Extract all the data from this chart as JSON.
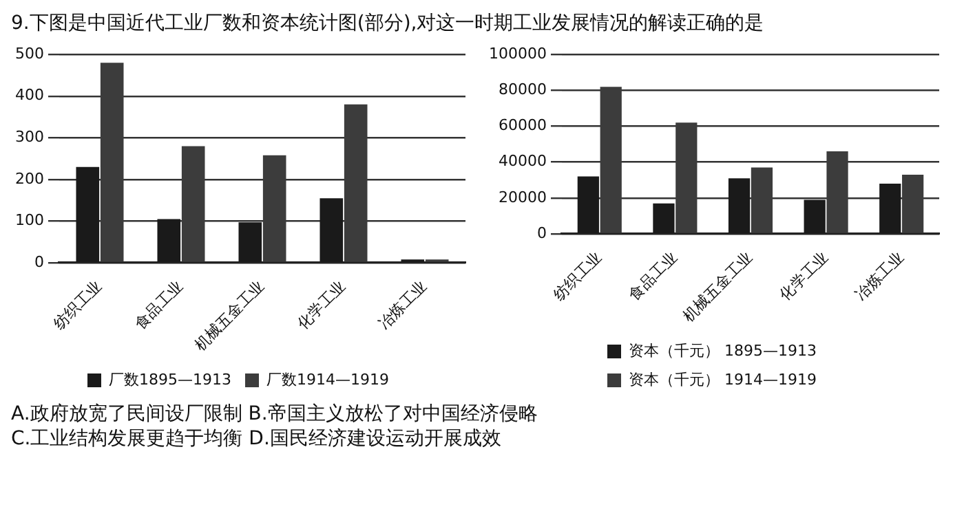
{
  "chart_data": [
    {
      "type": "bar",
      "title": "9.下图是中国近代工业厂数和资本统计图(部分),对这一时期工业发展情况的解读正确的是",
      "categories": [
        "纺织工业",
        "食品工业",
        "机械五金工业",
        "化学工业",
        "冶炼工业"
      ],
      "series": [
        {
          "name": "厂数1895—1913",
          "color": "#1a1a1a",
          "values": [
            230,
            105,
            97,
            155,
            8
          ]
        },
        {
          "name": "厂数1914—1919",
          "color": "#3c3c3c",
          "values": [
            480,
            280,
            258,
            380,
            8
          ]
        }
      ],
      "ylim": [
        0,
        500
      ],
      "yticks": [
        0,
        100,
        200,
        300,
        400,
        500
      ],
      "grid": "y",
      "legend": "bottom"
    },
    {
      "type": "bar",
      "categories": [
        "纺织工业",
        "食品工业",
        "机械五金工业",
        "化学工业",
        "冶炼工业"
      ],
      "series": [
        {
          "name": "资本（千元） 1895—1913",
          "color": "#1a1a1a",
          "values": [
            32000,
            17000,
            31000,
            19000,
            28000
          ]
        },
        {
          "name": "资本（千元） 1914—1919",
          "color": "#3c3c3c",
          "values": [
            82000,
            62000,
            37000,
            46000,
            33000
          ]
        }
      ],
      "ylim": [
        0,
        100000
      ],
      "yticks": [
        0,
        20000,
        40000,
        60000,
        80000,
        100000
      ],
      "grid": "y",
      "legend": "bottom",
      "annotations": [
        "A.政府放宽了民间设厂限制 B.帝国主义放松了对中国经济侵略",
        "C.工业结构发展更趋于均衡 D.国民经济建设运动开展成效"
      ]
    }
  ]
}
